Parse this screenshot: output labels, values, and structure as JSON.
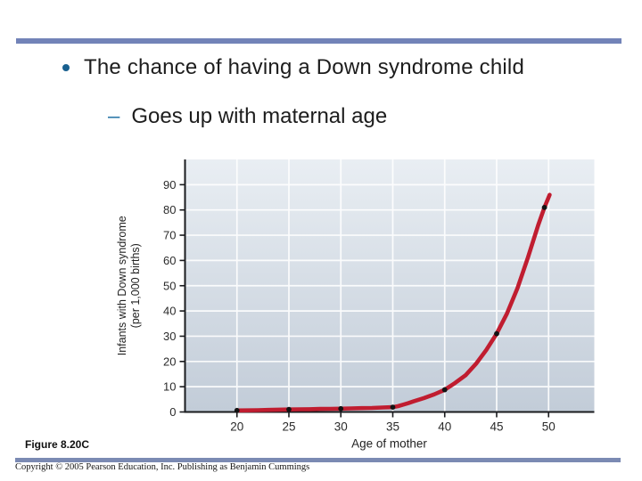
{
  "slide": {
    "title": "The chance of having a Down syndrome child",
    "subtitle": "Goes up with maternal age",
    "dash_glyph": "–",
    "figure_label": "Figure 8.20C",
    "copyright": "Copyright © 2005 Pearson Education, Inc. Publishing as Benjamin Cummings",
    "accent_bar_color": "#7283b8",
    "bullet_icon_color": "#19608f"
  },
  "chart_data": {
    "type": "line",
    "title": "",
    "xlabel": "Age of mother",
    "ylabel": "Infants with Down syndrome (per 1,000 births)",
    "ylabel_lines": [
      "Infants with Down syndrome",
      "(per 1,000 births)"
    ],
    "x_ticks": [
      20,
      25,
      30,
      35,
      40,
      45,
      50
    ],
    "y_ticks": [
      0,
      10,
      20,
      30,
      40,
      50,
      60,
      70,
      80,
      90
    ],
    "xlim": [
      15,
      54.4
    ],
    "ylim": [
      0,
      100
    ],
    "grid": true,
    "legend": "none",
    "plot_bg_top": "#e9eef3",
    "plot_bg_bottom": "#c2ccd8",
    "gridline_color": "#ffffff",
    "axis_color": "#1a1b1e",
    "tick_label_color": "#2b2b2b",
    "series": [
      {
        "name": "Infants with Down syndrome per 1,000 births",
        "color": "#c01d30",
        "marker_color": "#131313",
        "points": [
          [
            20,
            0.6
          ],
          [
            25,
            1.0
          ],
          [
            30,
            1.3
          ],
          [
            35,
            1.9
          ],
          [
            40,
            8.8
          ],
          [
            45,
            31
          ],
          [
            49.6,
            81
          ]
        ],
        "curve": [
          [
            20,
            0.6
          ],
          [
            21,
            0.65
          ],
          [
            22,
            0.7
          ],
          [
            23,
            0.8
          ],
          [
            24,
            0.9
          ],
          [
            25,
            1.0
          ],
          [
            26,
            1.05
          ],
          [
            27,
            1.1
          ],
          [
            28,
            1.2
          ],
          [
            29,
            1.25
          ],
          [
            30,
            1.3
          ],
          [
            31,
            1.4
          ],
          [
            32,
            1.5
          ],
          [
            33,
            1.6
          ],
          [
            34,
            1.75
          ],
          [
            35,
            1.9
          ],
          [
            35.5,
            2.3
          ],
          [
            36,
            2.9
          ],
          [
            36.5,
            3.5
          ],
          [
            37,
            4.2
          ],
          [
            38,
            5.5
          ],
          [
            39,
            7.0
          ],
          [
            40,
            8.8
          ],
          [
            41,
            11.5
          ],
          [
            42,
            14.5
          ],
          [
            43,
            19.0
          ],
          [
            44,
            24.5
          ],
          [
            45,
            31.0
          ],
          [
            46,
            39.0
          ],
          [
            47,
            49.0
          ],
          [
            48,
            61.0
          ],
          [
            49,
            74.0
          ],
          [
            49.6,
            81.0
          ],
          [
            50.1,
            86.0
          ]
        ]
      }
    ]
  }
}
